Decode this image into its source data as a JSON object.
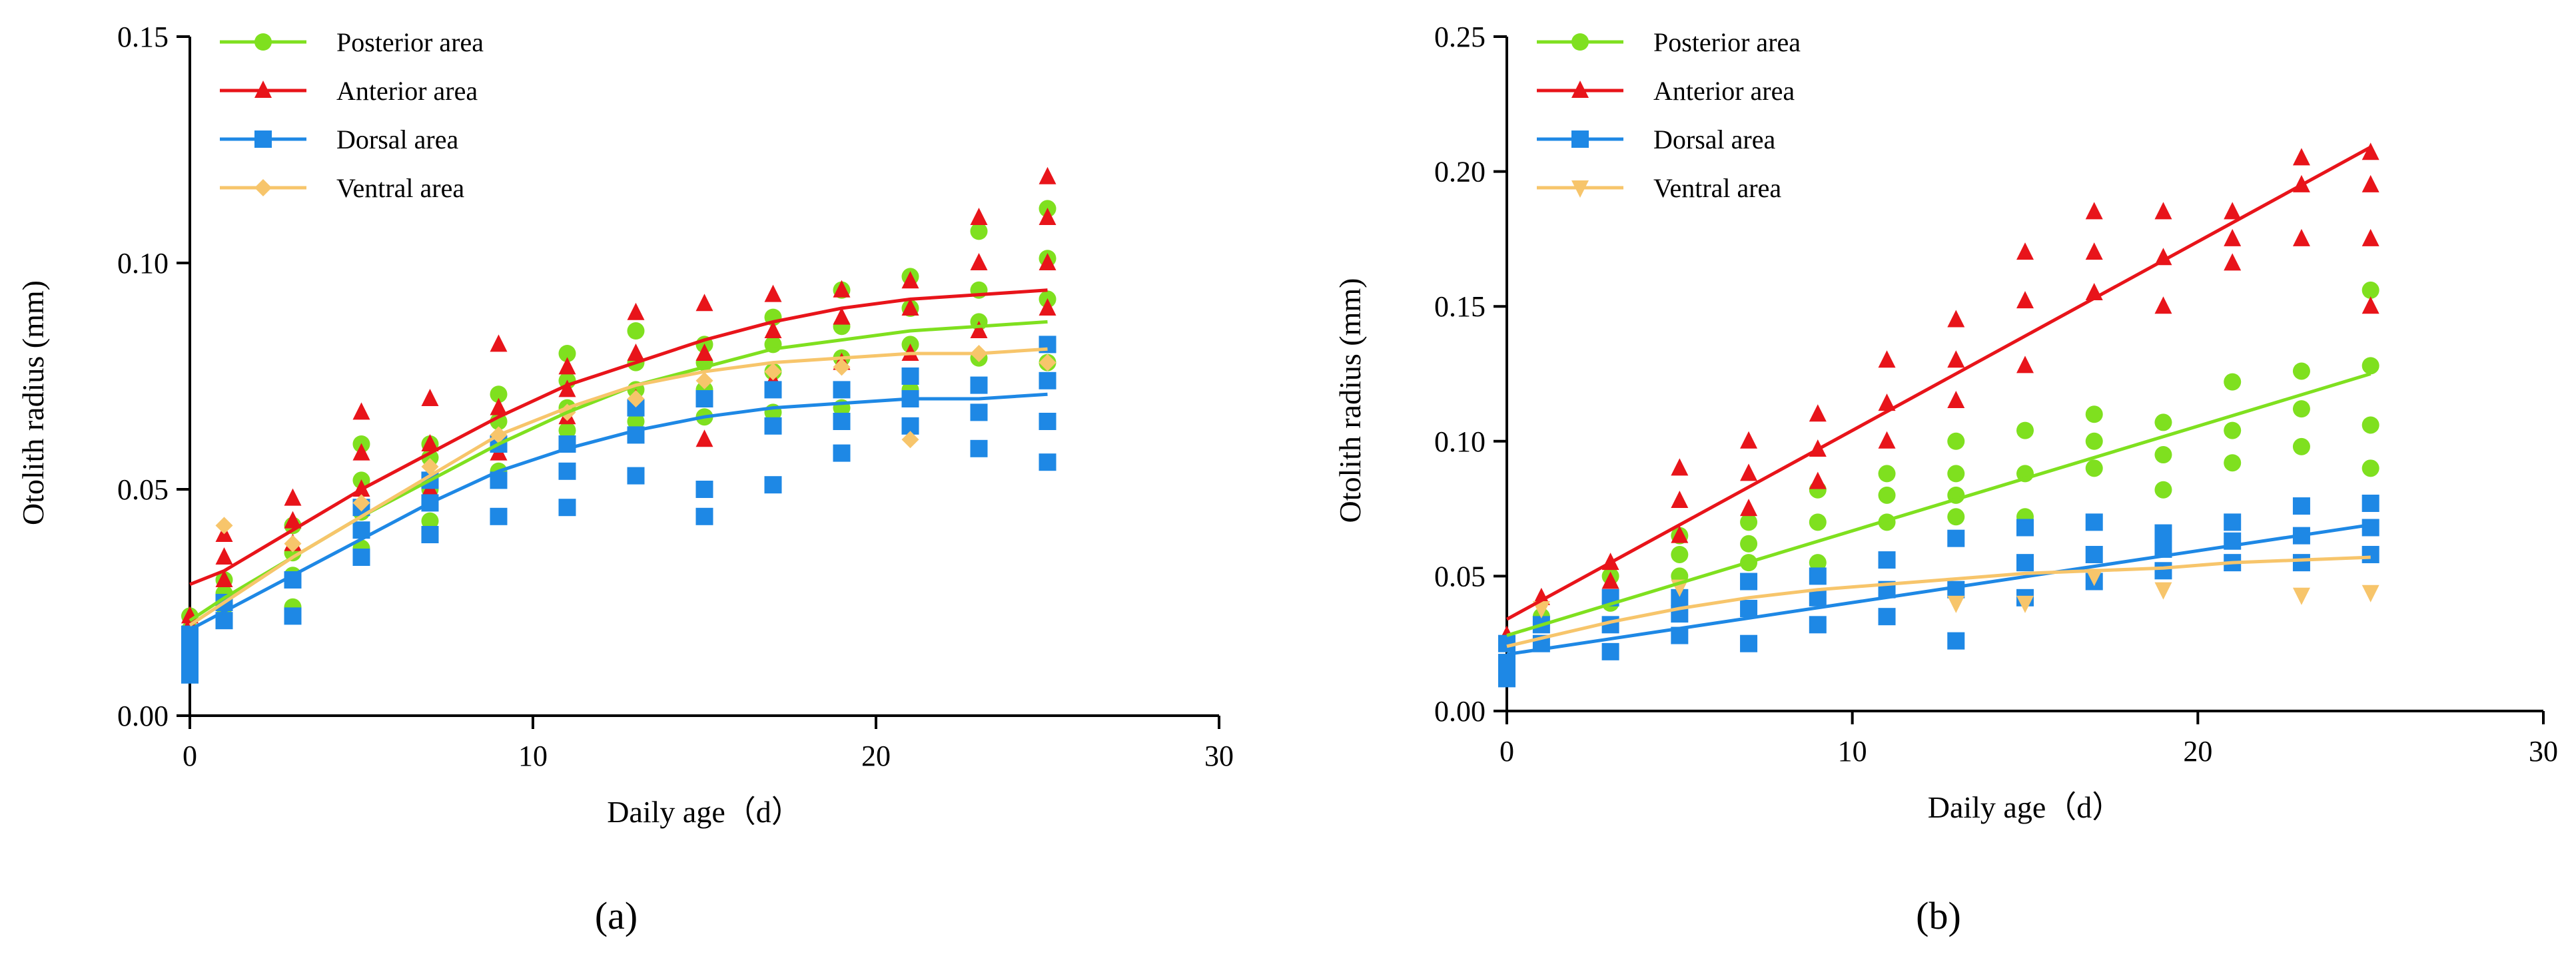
{
  "figure": {
    "panels": [
      {
        "panel_label": "(a)"
      },
      {
        "panel_label": "(b)"
      }
    ]
  },
  "chart_data": [
    {
      "type": "scatter",
      "panel": "(a)",
      "xlabel": "Daily age（d）",
      "ylabel": "Otolith radius (mm)",
      "xlim": [
        0,
        30
      ],
      "ylim": [
        0,
        0.15
      ],
      "xticks": [
        "0",
        "10",
        "20",
        "30"
      ],
      "yticks": [
        "0.00",
        "0.05",
        "0.10",
        "0.15"
      ],
      "legend_position": "top-left",
      "grid": false,
      "series": [
        {
          "name": "Posterior area",
          "color": "#7fe01f",
          "marker": "circle",
          "fit": {
            "x": [
              0,
              1,
              3,
              5,
              7,
              9,
              11,
              13,
              15,
              17,
              19,
              21,
              23,
              25
            ],
            "y": [
              0.021,
              0.026,
              0.035,
              0.044,
              0.052,
              0.06,
              0.067,
              0.073,
              0.077,
              0.081,
              0.083,
              0.085,
              0.086,
              0.087
            ]
          },
          "points": {
            "x": [
              0,
              0,
              0,
              1,
              1,
              1,
              3,
              3,
              3,
              3,
              5,
              5,
              5,
              5,
              7,
              7,
              7,
              7,
              9,
              9,
              9,
              9,
              11,
              11,
              11,
              11,
              13,
              13,
              13,
              13,
              15,
              15,
              15,
              15,
              17,
              17,
              17,
              17,
              19,
              19,
              19,
              19,
              21,
              21,
              21,
              21,
              23,
              23,
              23,
              23,
              25,
              25,
              25,
              25
            ],
            "y": [
              0.016,
              0.019,
              0.022,
              0.024,
              0.027,
              0.03,
              0.024,
              0.031,
              0.036,
              0.042,
              0.037,
              0.045,
              0.052,
              0.06,
              0.043,
              0.05,
              0.057,
              0.06,
              0.054,
              0.06,
              0.065,
              0.071,
              0.063,
              0.068,
              0.074,
              0.08,
              0.065,
              0.072,
              0.078,
              0.085,
              0.066,
              0.072,
              0.078,
              0.082,
              0.067,
              0.076,
              0.082,
              0.088,
              0.068,
              0.079,
              0.086,
              0.094,
              0.072,
              0.082,
              0.09,
              0.097,
              0.079,
              0.087,
              0.094,
              0.107,
              0.078,
              0.092,
              0.101,
              0.112
            ]
          }
        },
        {
          "name": "Anterior area",
          "color": "#e8141a",
          "marker": "triangle",
          "fit": {
            "x": [
              0,
              1,
              3,
              5,
              7,
              9,
              11,
              13,
              15,
              17,
              19,
              21,
              23,
              25
            ],
            "y": [
              0.029,
              0.032,
              0.041,
              0.05,
              0.058,
              0.066,
              0.073,
              0.078,
              0.083,
              0.087,
              0.09,
              0.092,
              0.093,
              0.094
            ]
          },
          "points": {
            "x": [
              0,
              0,
              1,
              1,
              1,
              3,
              3,
              3,
              5,
              5,
              5,
              7,
              7,
              7,
              9,
              9,
              9,
              11,
              11,
              11,
              13,
              13,
              13,
              15,
              15,
              15,
              17,
              17,
              17,
              19,
              19,
              19,
              21,
              21,
              21,
              23,
              23,
              23,
              25,
              25,
              25,
              25
            ],
            "y": [
              0.02,
              0.022,
              0.03,
              0.035,
              0.04,
              0.038,
              0.043,
              0.048,
              0.05,
              0.058,
              0.067,
              0.05,
              0.06,
              0.07,
              0.058,
              0.068,
              0.082,
              0.066,
              0.072,
              0.077,
              0.07,
              0.08,
              0.089,
              0.061,
              0.08,
              0.091,
              0.074,
              0.085,
              0.093,
              0.078,
              0.088,
              0.094,
              0.08,
              0.09,
              0.096,
              0.085,
              0.1,
              0.11,
              0.09,
              0.1,
              0.11,
              0.119
            ]
          }
        },
        {
          "name": "Dorsal area",
          "color": "#1e88e5",
          "marker": "square",
          "fit": {
            "x": [
              0,
              1,
              3,
              5,
              7,
              9,
              11,
              13,
              15,
              17,
              19,
              21,
              23,
              25
            ],
            "y": [
              0.019,
              0.023,
              0.031,
              0.039,
              0.047,
              0.054,
              0.059,
              0.063,
              0.066,
              0.068,
              0.069,
              0.07,
              0.07,
              0.071
            ]
          },
          "points": {
            "x": [
              0,
              0,
              0,
              0,
              1,
              1,
              3,
              3,
              5,
              5,
              5,
              7,
              7,
              7,
              9,
              9,
              9,
              11,
              11,
              11,
              13,
              13,
              13,
              15,
              15,
              15,
              17,
              17,
              17,
              19,
              19,
              19,
              21,
              21,
              21,
              23,
              23,
              23,
              25,
              25,
              25,
              25
            ],
            "y": [
              0.009,
              0.012,
              0.015,
              0.018,
              0.021,
              0.025,
              0.022,
              0.03,
              0.035,
              0.041,
              0.046,
              0.04,
              0.047,
              0.052,
              0.044,
              0.052,
              0.06,
              0.046,
              0.054,
              0.06,
              0.053,
              0.062,
              0.068,
              0.044,
              0.05,
              0.07,
              0.051,
              0.064,
              0.072,
              0.058,
              0.065,
              0.072,
              0.064,
              0.07,
              0.075,
              0.059,
              0.067,
              0.073,
              0.056,
              0.065,
              0.074,
              0.082
            ]
          }
        },
        {
          "name": "Ventral area",
          "color": "#f7c56b",
          "marker": "diamond",
          "fit": {
            "x": [
              0,
              1,
              3,
              5,
              7,
              9,
              11,
              13,
              15,
              17,
              19,
              21,
              23,
              25
            ],
            "y": [
              0.02,
              0.025,
              0.035,
              0.044,
              0.053,
              0.062,
              0.068,
              0.073,
              0.076,
              0.078,
              0.079,
              0.08,
              0.08,
              0.081
            ]
          },
          "points": {
            "x": [
              1,
              3,
              5,
              7,
              9,
              11,
              13,
              15,
              17,
              19,
              21,
              23,
              25
            ],
            "y": [
              0.042,
              0.038,
              0.047,
              0.055,
              0.062,
              0.067,
              0.07,
              0.074,
              0.076,
              0.077,
              0.061,
              0.08,
              0.078
            ]
          }
        }
      ]
    },
    {
      "type": "scatter",
      "panel": "(b)",
      "xlabel": "Daily age（d）",
      "ylabel": "Otolith radius (mm)",
      "xlim": [
        0,
        30
      ],
      "ylim": [
        0,
        0.25
      ],
      "xticks": [
        "0",
        "10",
        "20",
        "30"
      ],
      "yticks": [
        "0.00",
        "0.05",
        "0.10",
        "0.15",
        "0.20",
        "0.25"
      ],
      "legend_position": "top-left",
      "grid": false,
      "series": [
        {
          "name": "Posterior area",
          "color": "#7fe01f",
          "marker": "circle",
          "fit": {
            "x": [
              0,
              25
            ],
            "y": [
              0.028,
              0.125
            ]
          },
          "points": {
            "x": [
              0,
              0,
              1,
              3,
              3,
              5,
              5,
              5,
              7,
              7,
              7,
              9,
              9,
              9,
              11,
              11,
              11,
              13,
              13,
              13,
              13,
              15,
              15,
              15,
              17,
              17,
              17,
              19,
              19,
              19,
              21,
              21,
              21,
              23,
              23,
              23,
              25,
              25,
              25,
              25
            ],
            "y": [
              0.015,
              0.025,
              0.035,
              0.04,
              0.05,
              0.05,
              0.058,
              0.065,
              0.055,
              0.062,
              0.07,
              0.055,
              0.07,
              0.082,
              0.07,
              0.08,
              0.088,
              0.072,
              0.08,
              0.088,
              0.1,
              0.072,
              0.088,
              0.104,
              0.09,
              0.1,
              0.11,
              0.082,
              0.095,
              0.107,
              0.092,
              0.104,
              0.122,
              0.098,
              0.112,
              0.126,
              0.09,
              0.106,
              0.128,
              0.156
            ]
          }
        },
        {
          "name": "Anterior area",
          "color": "#e8141a",
          "marker": "triangle",
          "fit": {
            "x": [
              0,
              25
            ],
            "y": [
              0.034,
              0.209
            ]
          },
          "points": {
            "x": [
              0,
              1,
              3,
              3,
              5,
              5,
              5,
              7,
              7,
              7,
              9,
              9,
              9,
              11,
              11,
              11,
              13,
              13,
              13,
              15,
              15,
              15,
              17,
              17,
              17,
              19,
              19,
              19,
              21,
              21,
              21,
              23,
              23,
              23,
              25,
              25,
              25,
              25
            ],
            "y": [
              0.028,
              0.042,
              0.048,
              0.055,
              0.065,
              0.078,
              0.09,
              0.075,
              0.088,
              0.1,
              0.085,
              0.097,
              0.11,
              0.1,
              0.114,
              0.13,
              0.115,
              0.13,
              0.145,
              0.128,
              0.152,
              0.17,
              0.155,
              0.17,
              0.185,
              0.15,
              0.168,
              0.185,
              0.166,
              0.175,
              0.185,
              0.175,
              0.195,
              0.205,
              0.15,
              0.175,
              0.195,
              0.207
            ]
          }
        },
        {
          "name": "Dorsal area",
          "color": "#1e88e5",
          "marker": "square",
          "fit": {
            "x": [
              0,
              25
            ],
            "y": [
              0.021,
              0.069
            ]
          },
          "points": {
            "x": [
              0,
              0,
              0,
              1,
              1,
              3,
              3,
              3,
              5,
              5,
              5,
              7,
              7,
              7,
              9,
              9,
              9,
              11,
              11,
              11,
              13,
              13,
              13,
              15,
              15,
              15,
              17,
              17,
              17,
              19,
              19,
              19,
              21,
              21,
              21,
              23,
              23,
              23,
              25,
              25,
              25
            ],
            "y": [
              0.012,
              0.018,
              0.025,
              0.025,
              0.032,
              0.022,
              0.032,
              0.042,
              0.028,
              0.036,
              0.042,
              0.025,
              0.038,
              0.048,
              0.032,
              0.042,
              0.05,
              0.035,
              0.045,
              0.056,
              0.026,
              0.045,
              0.064,
              0.042,
              0.055,
              0.068,
              0.048,
              0.058,
              0.07,
              0.052,
              0.06,
              0.066,
              0.055,
              0.063,
              0.07,
              0.055,
              0.065,
              0.076,
              0.058,
              0.068,
              0.077
            ]
          }
        },
        {
          "name": "Ventral area",
          "color": "#f7c56b",
          "marker": "inverted-triangle",
          "fit": {
            "x": [
              0,
              1,
              3,
              5,
              7,
              9,
              11,
              13,
              15,
              17,
              19,
              21,
              23,
              25
            ],
            "y": [
              0.024,
              0.027,
              0.033,
              0.038,
              0.042,
              0.045,
              0.047,
              0.049,
              0.051,
              0.052,
              0.053,
              0.055,
              0.056,
              0.057
            ]
          },
          "points": {
            "x": [
              1,
              5,
              13,
              15,
              17,
              19,
              23,
              25
            ],
            "y": [
              0.038,
              0.046,
              0.04,
              0.04,
              0.05,
              0.045,
              0.043,
              0.044
            ]
          }
        }
      ]
    }
  ]
}
